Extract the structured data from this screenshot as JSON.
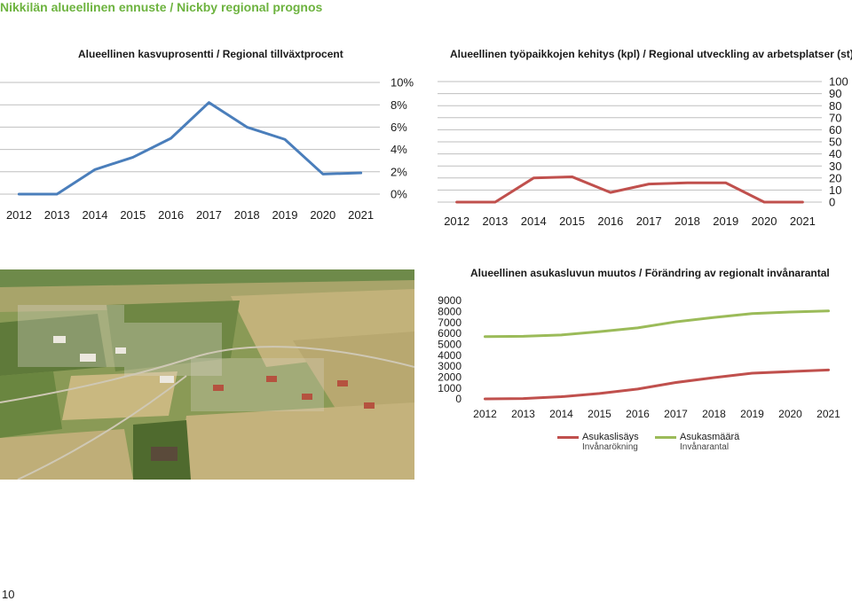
{
  "page": {
    "title": "Nikkilän alueellinen ennuste / Nickby regional prognos",
    "page_number": "10"
  },
  "colors": {
    "title_green": "#6db33f",
    "blue": "#4a7ebb",
    "red": "#c0504d",
    "green": "#9bbb59",
    "grid": "#bfbfbf"
  },
  "chart_data": [
    {
      "id": "growth",
      "type": "line",
      "title": "Alueellinen kasvuprosentti / Regional tillväxtprocent",
      "categories": [
        "2012",
        "2013",
        "2014",
        "2015",
        "2016",
        "2017",
        "2018",
        "2019",
        "2020",
        "2021"
      ],
      "series": [
        {
          "values": [
            0.0,
            0.0,
            2.2,
            3.3,
            5.0,
            8.2,
            6.0,
            4.9,
            1.8,
            1.9
          ]
        }
      ],
      "ylim": [
        0,
        10
      ],
      "y_ticks": [
        "0%",
        "2%",
        "4%",
        "6%",
        "8%",
        "10%"
      ],
      "y_axis_side": "right",
      "grid": true,
      "color": "#4a7ebb"
    },
    {
      "id": "jobs",
      "type": "line",
      "title": "Alueellinen työpaikkojen kehitys (kpl) / Regional utveckling av arbetsplatser (st)",
      "categories": [
        "2012",
        "2013",
        "2014",
        "2015",
        "2016",
        "2017",
        "2018",
        "2019",
        "2020",
        "2021"
      ],
      "series": [
        {
          "values": [
            0,
            0,
            20,
            21,
            8,
            15,
            16,
            16,
            0,
            0
          ]
        }
      ],
      "ylim": [
        0,
        100
      ],
      "y_ticks": [
        "0",
        "10",
        "20",
        "30",
        "40",
        "50",
        "60",
        "70",
        "80",
        "90",
        "100"
      ],
      "y_axis_side": "right",
      "grid": true,
      "color": "#c0504d"
    },
    {
      "id": "population",
      "type": "line",
      "title": "Alueellinen asukasluvun muutos / Förändring av regionalt invånarantal",
      "categories": [
        "2012",
        "2013",
        "2014",
        "2015",
        "2016",
        "2017",
        "2018",
        "2019",
        "2020",
        "2021"
      ],
      "series": [
        {
          "name": "Asukaslisäys",
          "subname": "Invånarökning",
          "color": "#c0504d",
          "values": [
            0,
            30,
            200,
            500,
            900,
            1500,
            1950,
            2350,
            2500,
            2650
          ]
        },
        {
          "name": "Asukasmäärä",
          "subname": "Invånarantal",
          "color": "#9bbb59",
          "values": [
            5700,
            5730,
            5850,
            6150,
            6500,
            7050,
            7450,
            7800,
            7950,
            8050
          ]
        }
      ],
      "ylim": [
        0,
        9000
      ],
      "y_ticks": [
        "0",
        "1000",
        "2000",
        "3000",
        "4000",
        "5000",
        "6000",
        "7000",
        "8000",
        "9000"
      ],
      "y_axis_side": "left",
      "grid": false,
      "legend": "bottom"
    }
  ]
}
